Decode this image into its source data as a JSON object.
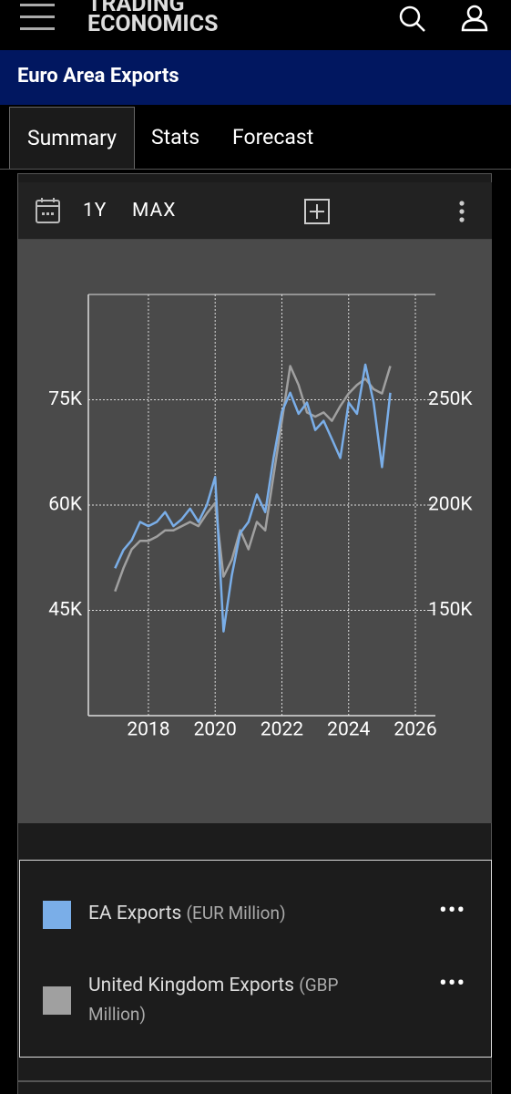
{
  "header": {
    "logo_line1": "TRADING",
    "logo_line2": "ECONOMICS"
  },
  "banner": {
    "title": "Euro Area Exports"
  },
  "tabs": [
    "Summary",
    "Stats",
    "Forecast"
  ],
  "toolbar": {
    "ranges": [
      "1Y",
      "MAX"
    ]
  },
  "chart_data": {
    "type": "line",
    "x": [
      2017.0,
      2017.25,
      2017.5,
      2017.75,
      2018.0,
      2018.25,
      2018.5,
      2018.75,
      2019.0,
      2019.25,
      2019.5,
      2019.75,
      2020.0,
      2020.25,
      2020.5,
      2020.75,
      2021.0,
      2021.25,
      2021.5,
      2021.75,
      2022.0,
      2022.25,
      2022.5,
      2022.75,
      2023.0,
      2023.25,
      2023.5,
      2023.75,
      2024.0,
      2024.25,
      2024.5,
      2024.75,
      2025.0,
      2025.25
    ],
    "xlim": [
      2016.2,
      2026.6
    ],
    "xticks": [
      2018,
      2020,
      2022,
      2024,
      2026
    ],
    "ylim": [
      30000,
      90000
    ],
    "yticks": [
      {
        "value": 45000,
        "label": "45K"
      },
      {
        "value": 60000,
        "label": "60K"
      },
      {
        "value": 75000,
        "label": "75K"
      }
    ],
    "y2lim": [
      100000,
      300000
    ],
    "y2ticks": [
      {
        "value": 150000,
        "label": "150K"
      },
      {
        "value": 200000,
        "label": "200K"
      },
      {
        "value": 250000,
        "label": "250K"
      }
    ],
    "grid": true,
    "series": [
      {
        "name": "EA Exports",
        "unit": "(EUR Million)",
        "color": "#7aaee8",
        "values": [
          51000,
          53600,
          55000,
          57600,
          57000,
          57600,
          59000,
          57000,
          58000,
          59500,
          57600,
          60000,
          64000,
          42000,
          50000,
          56000,
          57600,
          61500,
          59000,
          66700,
          73300,
          76000,
          73000,
          74600,
          70700,
          72000,
          69400,
          66700,
          74600,
          73000,
          80000,
          74600,
          65400,
          76000
        ]
      },
      {
        "name": "United Kingdom Exports",
        "unit": "(GBP Million)",
        "color": "#a0a0a0",
        "axis": "y2",
        "values": [
          159000,
          170000,
          179000,
          183000,
          183000,
          185000,
          188000,
          188000,
          190000,
          192000,
          190000,
          196000,
          201000,
          166000,
          174000,
          188000,
          179000,
          192000,
          188000,
          214000,
          240000,
          266000,
          257000,
          244000,
          242000,
          244000,
          240000,
          247000,
          253000,
          257000,
          260000,
          255000,
          253000,
          266000
        ]
      }
    ]
  }
}
